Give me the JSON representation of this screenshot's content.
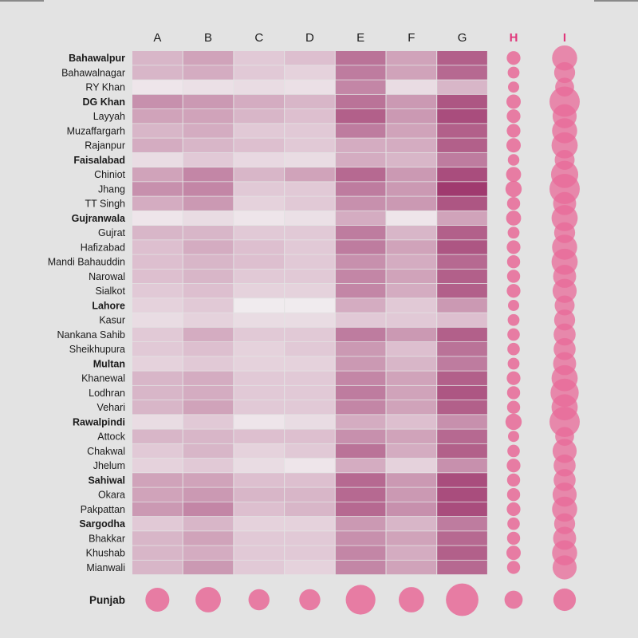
{
  "chart_data": {
    "type": "heatmap",
    "columns": [
      "A",
      "B",
      "C",
      "D",
      "E",
      "F",
      "G",
      "H",
      "I"
    ],
    "heat_columns": [
      "A",
      "B",
      "C",
      "D",
      "E",
      "F",
      "G"
    ],
    "bubble_columns": [
      "H",
      "I"
    ],
    "colors": {
      "heat_light": "#f2eff1",
      "heat_dark": "#9c3068",
      "bubble": "#e86a98",
      "bubble_header": "#e0377b",
      "background": "#e3e3e3",
      "text": "#1a1a1a"
    },
    "rows": [
      {
        "name": "Bahawalpur",
        "division": true,
        "values": [
          0.3,
          0.4,
          0.2,
          0.25,
          0.65,
          0.4,
          0.75
        ],
        "h": 0.45,
        "i": 0.75
      },
      {
        "name": "Bahawalnagar",
        "division": false,
        "values": [
          0.3,
          0.35,
          0.2,
          0.15,
          0.6,
          0.4,
          0.7
        ],
        "h": 0.3,
        "i": 0.55
      },
      {
        "name": "RY Khan",
        "division": false,
        "values": [
          0.05,
          0.08,
          0.1,
          0.08,
          0.55,
          0.1,
          0.3
        ],
        "h": 0.25,
        "i": 0.45
      },
      {
        "name": "DG Khan",
        "division": true,
        "values": [
          0.5,
          0.45,
          0.35,
          0.3,
          0.65,
          0.45,
          0.8
        ],
        "h": 0.5,
        "i": 1.0
      },
      {
        "name": "Layyah",
        "division": false,
        "values": [
          0.4,
          0.4,
          0.3,
          0.25,
          0.75,
          0.45,
          0.85
        ],
        "h": 0.45,
        "i": 0.7
      },
      {
        "name": "Muzaffargarh",
        "division": false,
        "values": [
          0.3,
          0.35,
          0.2,
          0.2,
          0.6,
          0.4,
          0.75
        ],
        "h": 0.45,
        "i": 0.75
      },
      {
        "name": "Rajanpur",
        "division": false,
        "values": [
          0.35,
          0.3,
          0.25,
          0.2,
          0.35,
          0.35,
          0.75
        ],
        "h": 0.5,
        "i": 0.8
      },
      {
        "name": "Faisalabad",
        "division": true,
        "values": [
          0.1,
          0.2,
          0.12,
          0.1,
          0.35,
          0.3,
          0.6
        ],
        "h": 0.28,
        "i": 0.5
      },
      {
        "name": "Chiniot",
        "division": false,
        "values": [
          0.4,
          0.55,
          0.3,
          0.4,
          0.7,
          0.45,
          0.85
        ],
        "h": 0.55,
        "i": 0.85
      },
      {
        "name": "Jhang",
        "division": false,
        "values": [
          0.5,
          0.55,
          0.2,
          0.2,
          0.6,
          0.45,
          0.95
        ],
        "h": 0.65,
        "i": 1.0
      },
      {
        "name": "TT Singh",
        "division": false,
        "values": [
          0.35,
          0.45,
          0.15,
          0.2,
          0.5,
          0.45,
          0.8
        ],
        "h": 0.4,
        "i": 0.65
      },
      {
        "name": "Gujranwala",
        "division": true,
        "values": [
          0.05,
          0.1,
          0.05,
          0.08,
          0.35,
          0.05,
          0.4
        ],
        "h": 0.55,
        "i": 0.8
      },
      {
        "name": "Gujrat",
        "division": false,
        "values": [
          0.3,
          0.3,
          0.2,
          0.2,
          0.6,
          0.3,
          0.75
        ],
        "h": 0.3,
        "i": 0.55
      },
      {
        "name": "Hafizabad",
        "division": false,
        "values": [
          0.25,
          0.35,
          0.25,
          0.2,
          0.6,
          0.4,
          0.8
        ],
        "h": 0.45,
        "i": 0.75
      },
      {
        "name": "Mandi Bahauddin",
        "division": false,
        "values": [
          0.25,
          0.3,
          0.25,
          0.2,
          0.5,
          0.35,
          0.7
        ],
        "h": 0.4,
        "i": 0.8
      },
      {
        "name": "Narowal",
        "division": false,
        "values": [
          0.25,
          0.3,
          0.2,
          0.2,
          0.55,
          0.4,
          0.75
        ],
        "h": 0.4,
        "i": 0.65
      },
      {
        "name": "Sialkot",
        "division": false,
        "values": [
          0.2,
          0.25,
          0.15,
          0.15,
          0.55,
          0.35,
          0.75
        ],
        "h": 0.45,
        "i": 0.7
      },
      {
        "name": "Lahore",
        "division": true,
        "values": [
          0.15,
          0.2,
          0.02,
          0.02,
          0.35,
          0.2,
          0.45
        ],
        "h": 0.25,
        "i": 0.5
      },
      {
        "name": "Kasur",
        "division": false,
        "values": [
          0.1,
          0.15,
          0.1,
          0.1,
          0.2,
          0.2,
          0.25
        ],
        "h": 0.3,
        "i": 0.55
      },
      {
        "name": "Nankana Sahib",
        "division": false,
        "values": [
          0.2,
          0.35,
          0.2,
          0.2,
          0.6,
          0.45,
          0.75
        ],
        "h": 0.35,
        "i": 0.6
      },
      {
        "name": "Sheikhupura",
        "division": false,
        "values": [
          0.2,
          0.25,
          0.15,
          0.2,
          0.45,
          0.25,
          0.65
        ],
        "h": 0.35,
        "i": 0.6
      },
      {
        "name": "Multan",
        "division": true,
        "values": [
          0.15,
          0.2,
          0.15,
          0.15,
          0.45,
          0.3,
          0.6
        ],
        "h": 0.3,
        "i": 0.65
      },
      {
        "name": "Khanewal",
        "division": false,
        "values": [
          0.3,
          0.35,
          0.2,
          0.2,
          0.55,
          0.4,
          0.75
        ],
        "h": 0.45,
        "i": 0.8
      },
      {
        "name": "Lodhran",
        "division": false,
        "values": [
          0.3,
          0.35,
          0.2,
          0.2,
          0.6,
          0.4,
          0.8
        ],
        "h": 0.4,
        "i": 0.9
      },
      {
        "name": "Vehari",
        "division": false,
        "values": [
          0.3,
          0.4,
          0.2,
          0.2,
          0.55,
          0.4,
          0.75
        ],
        "h": 0.4,
        "i": 0.8
      },
      {
        "name": "Rawalpindi",
        "division": true,
        "values": [
          0.1,
          0.2,
          0.05,
          0.1,
          0.35,
          0.25,
          0.5
        ],
        "h": 0.65,
        "i": 1.0
      },
      {
        "name": "Attock",
        "division": false,
        "values": [
          0.3,
          0.3,
          0.25,
          0.25,
          0.5,
          0.4,
          0.7
        ],
        "h": 0.25,
        "i": 0.45
      },
      {
        "name": "Chakwal",
        "division": false,
        "values": [
          0.2,
          0.3,
          0.15,
          0.2,
          0.65,
          0.35,
          0.75
        ],
        "h": 0.35,
        "i": 0.7
      },
      {
        "name": "Jhelum",
        "division": false,
        "values": [
          0.15,
          0.2,
          0.1,
          0.05,
          0.35,
          0.15,
          0.5
        ],
        "h": 0.45,
        "i": 0.6
      },
      {
        "name": "Sahiwal",
        "division": true,
        "values": [
          0.4,
          0.4,
          0.25,
          0.25,
          0.7,
          0.45,
          0.85
        ],
        "h": 0.4,
        "i": 0.6
      },
      {
        "name": "Okara",
        "division": false,
        "values": [
          0.4,
          0.45,
          0.3,
          0.3,
          0.7,
          0.45,
          0.85
        ],
        "h": 0.4,
        "i": 0.7
      },
      {
        "name": "Pakpattan",
        "division": false,
        "values": [
          0.45,
          0.55,
          0.25,
          0.3,
          0.7,
          0.5,
          0.85
        ],
        "h": 0.45,
        "i": 0.75
      },
      {
        "name": "Sargodha",
        "division": true,
        "values": [
          0.2,
          0.3,
          0.15,
          0.15,
          0.45,
          0.3,
          0.6
        ],
        "h": 0.35,
        "i": 0.55
      },
      {
        "name": "Bhakkar",
        "division": false,
        "values": [
          0.3,
          0.4,
          0.2,
          0.2,
          0.5,
          0.4,
          0.7
        ],
        "h": 0.4,
        "i": 0.65
      },
      {
        "name": "Khushab",
        "division": false,
        "values": [
          0.3,
          0.35,
          0.2,
          0.2,
          0.55,
          0.35,
          0.75
        ],
        "h": 0.5,
        "i": 0.75
      },
      {
        "name": "Mianwali",
        "division": false,
        "values": [
          0.3,
          0.45,
          0.2,
          0.15,
          0.55,
          0.4,
          0.7
        ],
        "h": 0.4,
        "i": 0.7
      }
    ],
    "summary": {
      "name": "Punjab",
      "bubbles": [
        0.5,
        0.55,
        0.4,
        0.4,
        0.7,
        0.55,
        0.8,
        0.3,
        0.45
      ]
    }
  }
}
